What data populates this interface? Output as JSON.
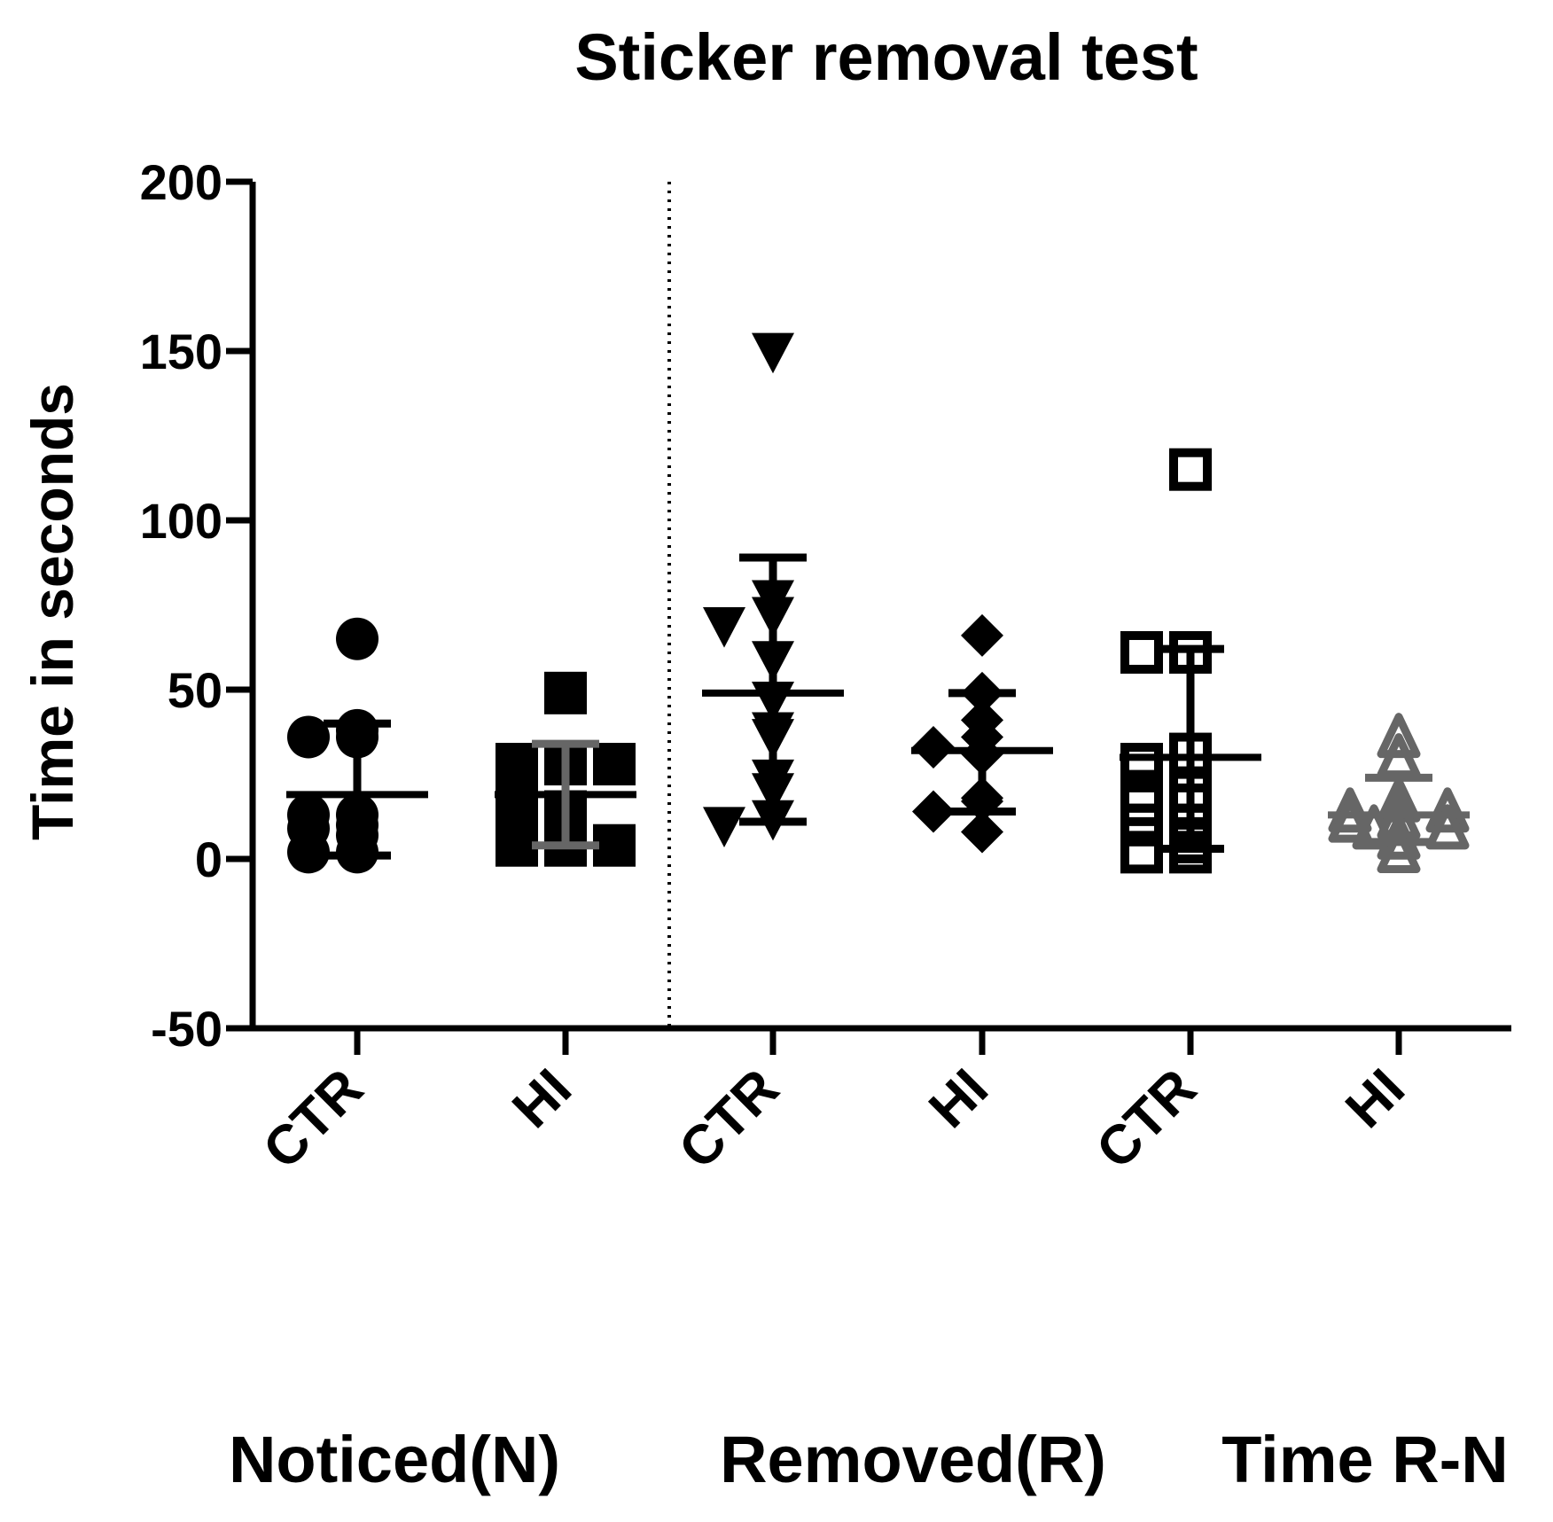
{
  "chart_data": {
    "type": "scatter",
    "title": "Sticker removal test",
    "ylabel": "Time in seconds",
    "ylim": [
      -50,
      200
    ],
    "yticks": [
      -50,
      0,
      50,
      100,
      150,
      200
    ],
    "categories": [
      "CTR",
      "HI",
      "CTR",
      "HI",
      "CTR",
      "HI"
    ],
    "groups": [
      {
        "label": "Noticed(N)",
        "category_indices": [
          0,
          1
        ]
      },
      {
        "label": "Removed(R)",
        "category_indices": [
          2,
          3
        ]
      },
      {
        "label": "Time  R-N",
        "category_indices": [
          4,
          5
        ]
      }
    ],
    "separator_after_category": 1,
    "series": [
      {
        "category": "CTR",
        "marker": "circle",
        "color": "#000000",
        "mean": 19,
        "sd_low": 1,
        "sd_high": 40,
        "points": [
          65,
          36,
          38,
          36,
          10,
          13,
          7,
          9,
          2,
          2,
          13
        ]
      },
      {
        "category": "HI",
        "marker": "square",
        "color": "#000000",
        "error_color": "#666666",
        "mean": 19,
        "sd_low": 4,
        "sd_high": 34,
        "points": [
          49,
          28,
          28,
          28,
          12,
          14,
          8,
          4,
          4,
          4,
          16
        ]
      },
      {
        "category": "CTR",
        "marker": "triangle-down",
        "color": "#000000",
        "mean": 49,
        "sd_low": 11,
        "sd_high": 89,
        "points": [
          150,
          72,
          77,
          69,
          59,
          47,
          36,
          38,
          20,
          24,
          12,
          10
        ]
      },
      {
        "category": "HI",
        "marker": "diamond",
        "color": "#000000",
        "mean": 32,
        "sd_low": 14,
        "sd_high": 49,
        "points": [
          66,
          49,
          41,
          36,
          31,
          33,
          18,
          17,
          14,
          8
        ]
      },
      {
        "category": "CTR",
        "marker": "square-open",
        "color": "#000000",
        "mean": 30,
        "sd_low": 3,
        "sd_high": 62,
        "points": [
          115,
          61,
          61,
          31,
          28,
          20,
          20,
          16,
          16,
          10,
          10,
          5,
          2,
          2
        ]
      },
      {
        "category": "HI",
        "marker": "triangle-up-open",
        "color": "#666666",
        "mean": 13,
        "sd_low": 5,
        "sd_high": 24,
        "points": [
          36,
          30,
          17,
          14,
          14,
          12,
          11,
          9,
          9,
          6,
          2
        ]
      }
    ]
  }
}
